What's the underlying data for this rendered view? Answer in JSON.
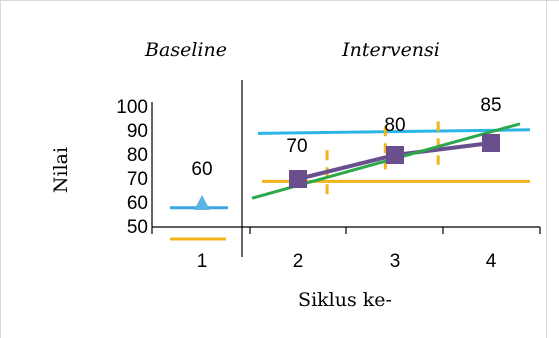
{
  "chart_data": {
    "type": "line",
    "phase_labels": [
      "Baseline",
      "Intervensi"
    ],
    "categories": [
      "1",
      "2",
      "3",
      "4"
    ],
    "ylabel": "Nilai",
    "xlabel": "Siklus ke-",
    "yticks": [
      "100",
      "90",
      "80",
      "70",
      "60",
      "50"
    ],
    "ylim": [
      50,
      100
    ],
    "series": [
      {
        "values": [
          60,
          null,
          null,
          null
        ],
        "data_labels": [
          "60",
          "",
          "",
          ""
        ],
        "marker": "triangle",
        "color": "#5BB5E3"
      },
      {
        "values": [
          null,
          70,
          80,
          85
        ],
        "data_labels": [
          "",
          "70",
          "80",
          "85"
        ],
        "marker": "square",
        "color": "#6A4F8F"
      }
    ],
    "baseline_level_lines": [
      {
        "value": 58,
        "color": "#3AA8E0"
      },
      {
        "value": 45,
        "color": "#F2B31B"
      }
    ],
    "intervention_level_lines": [
      {
        "from": 89,
        "to": 90.5,
        "color": "#2AB6E6"
      },
      {
        "value": 69,
        "color": "#F2B31B"
      }
    ],
    "trend_line": {
      "from": 62,
      "to": 93,
      "color": "#2BA84A"
    },
    "stability_ranges": [
      {
        "center_x": 2.3,
        "lo": 63,
        "hi": 82
      },
      {
        "center_x": 2.9,
        "lo": 74,
        "hi": 92
      },
      {
        "center_x": 3.45,
        "lo": 76,
        "hi": 94
      }
    ],
    "phase_divider_after": 1,
    "grid": false
  }
}
